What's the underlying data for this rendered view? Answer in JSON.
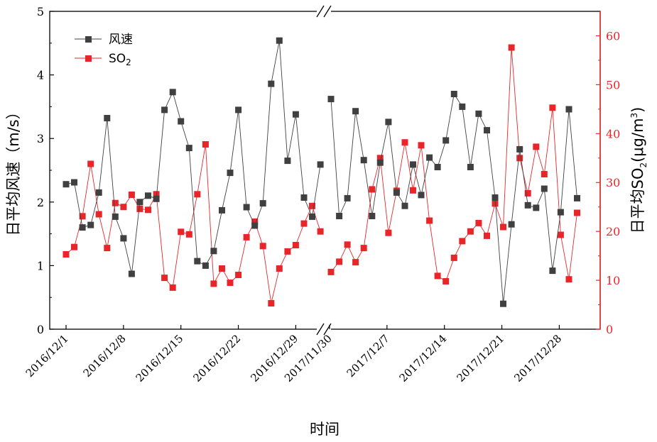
{
  "chart_data": {
    "type": "line",
    "xlabel": "时间",
    "ylabel_left": "日平均风速（m/s）",
    "ylabel_right_prefix": "日平均SO",
    "ylabel_right_sub": "2",
    "ylabel_right_mid": "(μg/m",
    "ylabel_right_sup": "3",
    "ylabel_right_suffix": ")",
    "ylim_left": [
      0,
      5
    ],
    "ylim_right": [
      0,
      65
    ],
    "yticks_left": [
      "0",
      "1",
      "2",
      "3",
      "4",
      "5"
    ],
    "yticks_right": [
      "0",
      "10",
      "20",
      "30",
      "40",
      "50",
      "60"
    ],
    "xtick_labels": [
      "2016/12/1",
      "2016/12/8",
      "2016/12/15",
      "2016/12/22",
      "2016/12/29",
      "2017/11/30",
      "2017/12/7",
      "2017/12/14",
      "2017/12/21",
      "2017/12/28"
    ],
    "legend": {
      "position": "top-left",
      "wind_label": "风速",
      "so2_prefix": "SO",
      "so2_sub": "2"
    },
    "colors": {
      "wind": "#404040",
      "so2": "#e8262a",
      "right_axis": "#e8262a"
    },
    "series": [
      {
        "name": "风速",
        "axis": "left",
        "segments": [
          [
            2.28,
            2.31,
            1.6,
            1.64,
            2.15,
            3.32,
            1.77,
            1.43,
            0.87,
            2.0,
            2.1,
            2.05,
            3.45,
            3.73,
            3.27,
            2.85,
            1.07,
            1.0,
            1.23,
            1.87,
            2.46,
            3.45,
            1.92,
            1.63,
            1.98,
            3.86,
            4.54,
            2.65,
            3.38,
            2.07,
            1.77,
            2.59
          ],
          [
            3.62,
            1.78,
            2.06,
            3.43,
            2.66,
            1.78,
            2.62,
            3.26,
            2.15,
            1.94,
            2.59,
            2.11,
            2.7,
            2.55,
            2.97,
            3.7,
            3.5,
            2.55,
            3.39,
            3.13,
            2.07,
            0.4,
            1.65,
            2.83,
            1.95,
            1.91,
            2.21,
            0.92,
            1.84,
            3.46,
            2.06
          ]
        ]
      },
      {
        "name": "SO2",
        "axis": "right",
        "segments": [
          [
            15.3,
            16.8,
            23.1,
            33.8,
            23.5,
            16.6,
            25.8,
            25.0,
            27.5,
            24.6,
            24.4,
            27.6,
            10.5,
            8.5,
            19.9,
            19.4,
            27.6,
            37.8,
            9.3,
            12.4,
            9.5,
            11.1,
            18.8,
            22.0,
            17.0,
            5.3,
            12.4,
            15.9,
            17.2,
            21.6,
            25.2,
            20.0
          ],
          [
            11.7,
            13.8,
            17.3,
            13.7,
            16.6,
            28.6,
            35.0,
            19.7,
            28.3,
            38.2,
            28.4,
            37.6,
            22.2,
            10.9,
            9.8,
            14.6,
            18.0,
            20.0,
            21.7,
            19.1,
            25.7,
            20.9,
            57.6,
            35.0,
            27.8,
            37.3,
            31.7,
            45.3,
            19.3,
            10.2,
            23.8
          ]
        ]
      }
    ]
  }
}
